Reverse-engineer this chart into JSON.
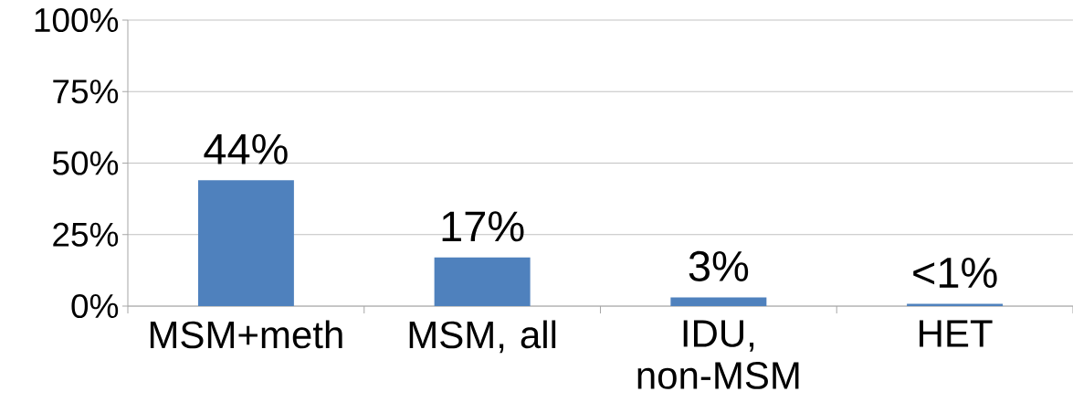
{
  "chart_data": {
    "type": "bar",
    "categories": [
      "MSM+meth",
      "MSM, all",
      "IDU, non-MSM",
      "HET"
    ],
    "values": [
      44,
      17,
      3,
      0.8
    ],
    "value_labels": [
      "44%",
      "17%",
      "3%",
      "<1%"
    ],
    "color": "#4f81bd",
    "ylim": [
      0,
      100
    ],
    "yticks": [
      {
        "value": 0,
        "label": "0%"
      },
      {
        "value": 25,
        "label": "25%"
      },
      {
        "value": 50,
        "label": "50%"
      },
      {
        "value": 75,
        "label": "75%"
      },
      {
        "value": 100,
        "label": "100%"
      }
    ],
    "grid": "y"
  }
}
